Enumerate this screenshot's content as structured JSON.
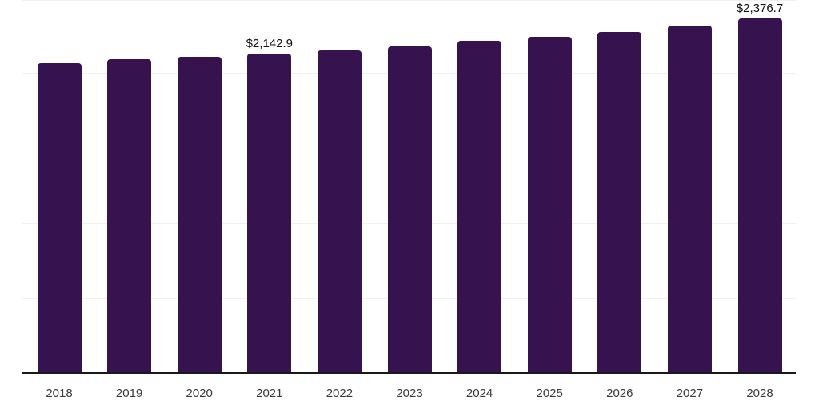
{
  "chart_data": {
    "type": "bar",
    "title": "",
    "xlabel": "",
    "ylabel": "",
    "categories": [
      "2018",
      "2019",
      "2020",
      "2021",
      "2022",
      "2023",
      "2024",
      "2025",
      "2026",
      "2027",
      "2028"
    ],
    "values": [
      2076,
      2104,
      2119,
      2142.9,
      2164,
      2190,
      2226,
      2254,
      2286,
      2330,
      2376.7
    ],
    "ylim": [
      0,
      2500
    ],
    "grid": true,
    "gridline_values": [
      500,
      1000,
      1500,
      2000,
      2500
    ],
    "legend_position": "none",
    "data_labels": [
      {
        "category": "2021",
        "text": "$2,142.9"
      },
      {
        "category": "2028",
        "text": "$2,376.7"
      }
    ],
    "colors": {
      "bar": "#36124F",
      "axis_line": "#1a1a1a",
      "gridline": "#f0f0f2",
      "tick_label": "#3a3a3a",
      "data_label": "#111111",
      "background": "#ffffff"
    }
  }
}
